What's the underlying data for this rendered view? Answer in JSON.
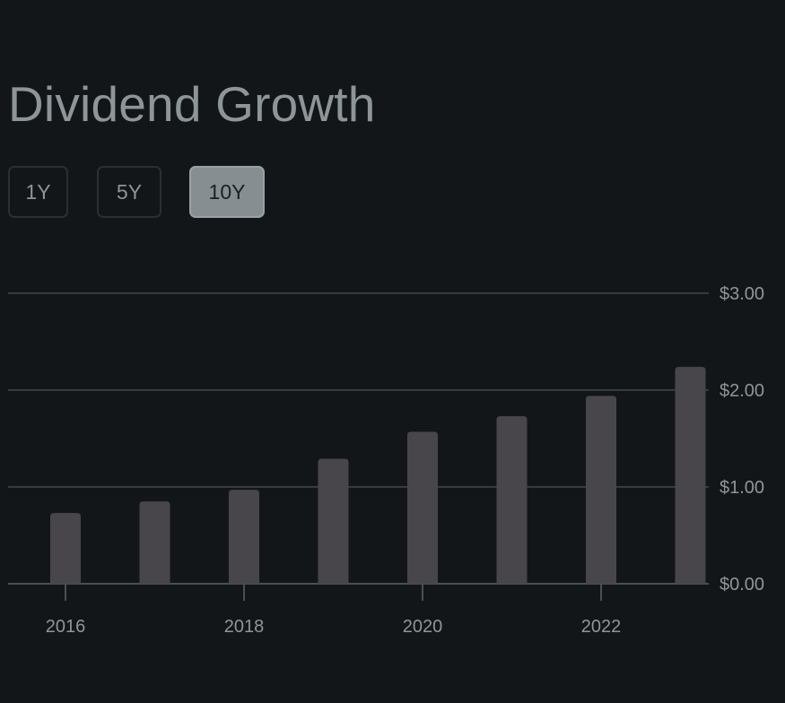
{
  "header": {
    "title": "Dividend Growth"
  },
  "range_selector": {
    "options": [
      "1Y",
      "5Y",
      "10Y"
    ],
    "selected": "10Y"
  },
  "colors": {
    "background": "#131619",
    "bar": "#48464b",
    "gridline": "#363b3f",
    "text": "#8f9598",
    "active_button": "#878e92"
  },
  "chart_data": {
    "type": "bar",
    "categories": [
      "2016",
      "2017",
      "2018",
      "2019",
      "2020",
      "2021",
      "2022",
      "2023"
    ],
    "values": [
      0.73,
      0.85,
      0.97,
      1.29,
      1.57,
      1.73,
      1.94,
      2.24
    ],
    "x_tick_labels": [
      "2016",
      "2018",
      "2020",
      "2022"
    ],
    "y_tick_labels": [
      "$0.00",
      "$1.00",
      "$2.00",
      "$3.00"
    ],
    "y_ticks": [
      0,
      1,
      2,
      3
    ],
    "ylim": [
      0,
      3
    ],
    "grid": true,
    "y_axis_position": "right"
  }
}
